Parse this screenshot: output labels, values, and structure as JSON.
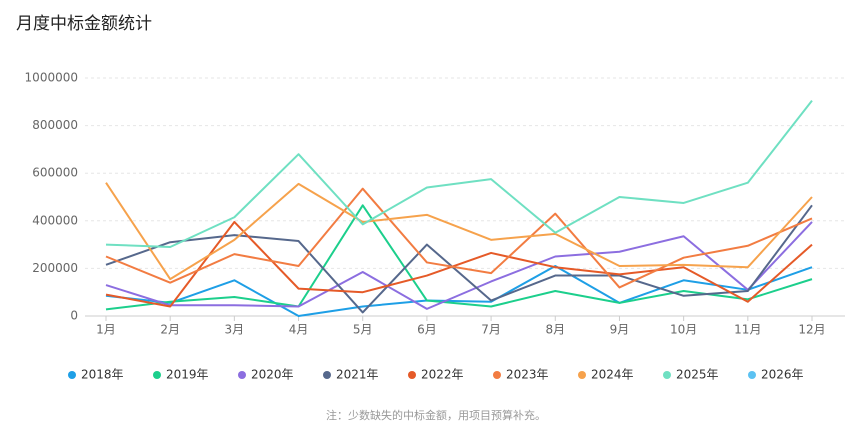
{
  "chart_data": {
    "type": "line",
    "title": "月度中标金额统计",
    "note": "注：少数缺失的中标金额，用项目预算补充。",
    "categories": [
      "1月",
      "2月",
      "3月",
      "4月",
      "5月",
      "6月",
      "7月",
      "8月",
      "9月",
      "10月",
      "11月",
      "12月"
    ],
    "ylim": [
      0,
      1000000
    ],
    "yticks": [
      0,
      200000,
      400000,
      600000,
      800000,
      1000000
    ],
    "grid": true,
    "series": [
      {
        "name": "2018年",
        "color": "#1e9fe6",
        "values": [
          85000,
          55000,
          150000,
          0,
          40000,
          65000,
          60000,
          210000,
          55000,
          150000,
          110000,
          205000
        ]
      },
      {
        "name": "2019年",
        "color": "#1ccf8c",
        "values": [
          28000,
          60000,
          80000,
          40000,
          465000,
          65000,
          40000,
          105000,
          55000,
          105000,
          70000,
          155000
        ]
      },
      {
        "name": "2020年",
        "color": "#8c6ee0",
        "values": [
          130000,
          45000,
          45000,
          40000,
          185000,
          30000,
          145000,
          250000,
          270000,
          335000,
          110000,
          395000
        ]
      },
      {
        "name": "2021年",
        "color": "#56688c",
        "values": [
          215000,
          310000,
          340000,
          315000,
          15000,
          300000,
          65000,
          170000,
          170000,
          85000,
          105000,
          465000
        ]
      },
      {
        "name": "2022年",
        "color": "#e55a28",
        "values": [
          90000,
          40000,
          395000,
          115000,
          100000,
          170000,
          265000,
          205000,
          175000,
          205000,
          60000,
          300000
        ]
      },
      {
        "name": "2023年",
        "color": "#f27c42",
        "values": [
          250000,
          140000,
          260000,
          210000,
          535000,
          225000,
          180000,
          430000,
          120000,
          245000,
          295000,
          410000
        ]
      },
      {
        "name": "2024年",
        "color": "#f6a24c",
        "values": [
          560000,
          155000,
          320000,
          555000,
          395000,
          425000,
          320000,
          345000,
          210000,
          215000,
          205000,
          500000
        ]
      },
      {
        "name": "2025年",
        "color": "#6fe0c2",
        "values": [
          300000,
          290000,
          415000,
          680000,
          385000,
          540000,
          575000,
          350000,
          500000,
          475000,
          560000,
          905000
        ]
      },
      {
        "name": "2026年",
        "color": "#5cc2f2",
        "values": [
          null,
          null,
          null,
          null,
          null,
          null,
          null,
          null,
          null,
          null,
          null,
          null
        ]
      }
    ]
  }
}
